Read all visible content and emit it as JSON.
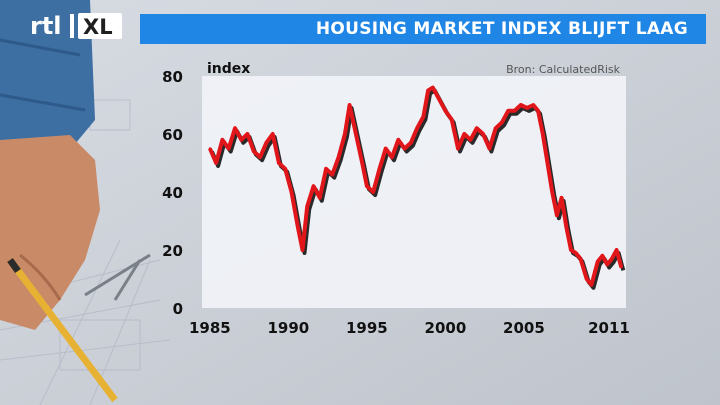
{
  "broadcast": {
    "channel_logo_text": "rtl XL",
    "headline": "HOUSING MARKET INDEX BLIJFT LAAG"
  },
  "colors": {
    "title_bar": "#1f86e6",
    "plot_background": "#f1f3f8",
    "line": "#e0161b"
  },
  "chart_data": {
    "type": "line",
    "title": "",
    "ylabel": "index",
    "xlabel": "",
    "source": "Bron: CalculatedRisk",
    "ylim": [
      0,
      80
    ],
    "xlim": [
      1984.5,
      2011.5
    ],
    "y_ticks": [
      0,
      20,
      40,
      60,
      80
    ],
    "x_ticks": [
      1985,
      1990,
      1995,
      2000,
      2005,
      2011
    ],
    "grid": false,
    "series": [
      {
        "x": [
          1985.0,
          1985.4,
          1985.8,
          1986.2,
          1986.6,
          1987.0,
          1987.4,
          1987.8,
          1988.2,
          1988.6,
          1989.0,
          1989.4,
          1989.8,
          1990.2,
          1990.6,
          1990.9,
          1991.2,
          1991.6,
          1992.0,
          1992.4,
          1992.8,
          1993.2,
          1993.6,
          1993.9,
          1994.3,
          1994.7,
          1995.0,
          1995.4,
          1995.8,
          1996.2,
          1996.6,
          1997.0,
          1997.4,
          1997.8,
          1998.2,
          1998.6,
          1998.9,
          1999.2,
          1999.6,
          2000.0,
          2000.4,
          2000.8,
          2001.2,
          2001.6,
          2002.0,
          2002.4,
          2002.8,
          2003.2,
          2003.6,
          2004.0,
          2004.4,
          2004.8,
          2005.2,
          2005.6,
          2005.9,
          2006.2,
          2006.5,
          2006.8,
          2007.1,
          2007.4,
          2007.7,
          2008.0,
          2008.3,
          2008.6,
          2009.0,
          2009.3,
          2009.7,
          2010.0,
          2010.3,
          2010.6,
          2010.9,
          2011.2
        ],
        "values": [
          55,
          50,
          58,
          55,
          62,
          58,
          60,
          54,
          52,
          57,
          60,
          50,
          48,
          40,
          28,
          20,
          35,
          42,
          38,
          48,
          46,
          52,
          60,
          70,
          60,
          50,
          42,
          40,
          48,
          55,
          52,
          58,
          55,
          57,
          62,
          66,
          75,
          76,
          72,
          68,
          65,
          55,
          60,
          58,
          62,
          60,
          55,
          62,
          64,
          68,
          68,
          70,
          69,
          70,
          68,
          60,
          50,
          40,
          32,
          38,
          28,
          20,
          19,
          17,
          10,
          8,
          16,
          18,
          15,
          17,
          20,
          14
        ]
      }
    ]
  }
}
